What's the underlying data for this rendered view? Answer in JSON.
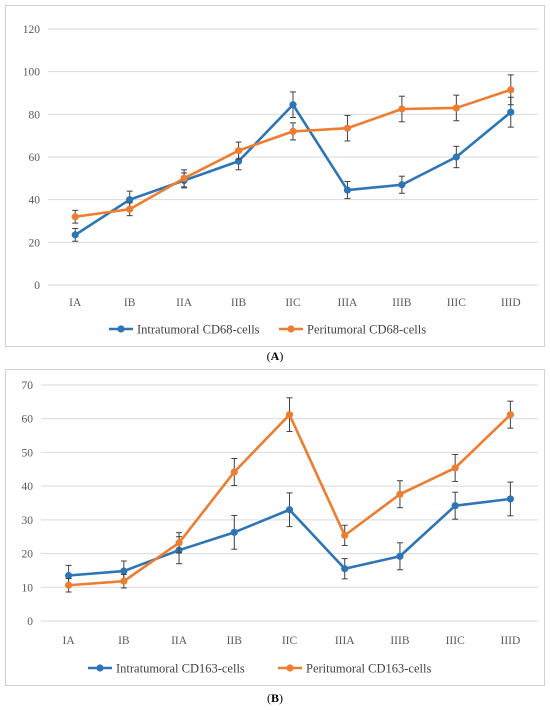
{
  "chart_data": [
    {
      "type": "line",
      "panel_label": "A",
      "categories": [
        "IA",
        "IB",
        "IIA",
        "IIB",
        "IIC",
        "IIIA",
        "IIIB",
        "IIIC",
        "IIID"
      ],
      "ylim": [
        0,
        120
      ],
      "yticks": [
        0,
        20,
        40,
        60,
        80,
        100,
        120
      ],
      "grid": true,
      "legend_position": "bottom",
      "series": [
        {
          "name": "Intratumoral CD68-cells",
          "color": "#2E75B6",
          "values": [
            23.5,
            40,
            49,
            58,
            84.5,
            44.5,
            47,
            60,
            81
          ],
          "errors": [
            3,
            4,
            3.5,
            4,
            6,
            4,
            4,
            5,
            7
          ]
        },
        {
          "name": "Peritumoral CD68-cells",
          "color": "#ED7D31",
          "values": [
            32,
            35.5,
            50,
            63,
            72,
            73.5,
            82.5,
            83,
            91.5
          ],
          "errors": [
            3,
            3,
            4,
            4,
            4,
            6,
            6,
            6,
            7
          ]
        }
      ]
    },
    {
      "type": "line",
      "panel_label": "B",
      "categories": [
        "IA",
        "IB",
        "IIA",
        "IIB",
        "IIC",
        "IIIA",
        "IIIB",
        "IIIC",
        "IIID"
      ],
      "ylim": [
        0,
        70
      ],
      "yticks": [
        0,
        10,
        20,
        30,
        40,
        50,
        60,
        70
      ],
      "grid": true,
      "legend_position": "bottom",
      "series": [
        {
          "name": "Intratumoral CD163-cells",
          "color": "#2E75B6",
          "values": [
            13.5,
            14.8,
            21,
            26.3,
            33,
            15.5,
            19.2,
            34.2,
            36.2
          ],
          "errors": [
            3,
            3,
            4,
            5,
            5,
            3,
            4,
            4,
            5
          ]
        },
        {
          "name": "Peritumoral CD163-cells",
          "color": "#ED7D31",
          "values": [
            10.6,
            11.8,
            23.2,
            44.2,
            61.2,
            25.4,
            37.6,
            45.4,
            61.2
          ],
          "errors": [
            2,
            2,
            3,
            4,
            5,
            3,
            4,
            4,
            4
          ]
        }
      ]
    }
  ]
}
